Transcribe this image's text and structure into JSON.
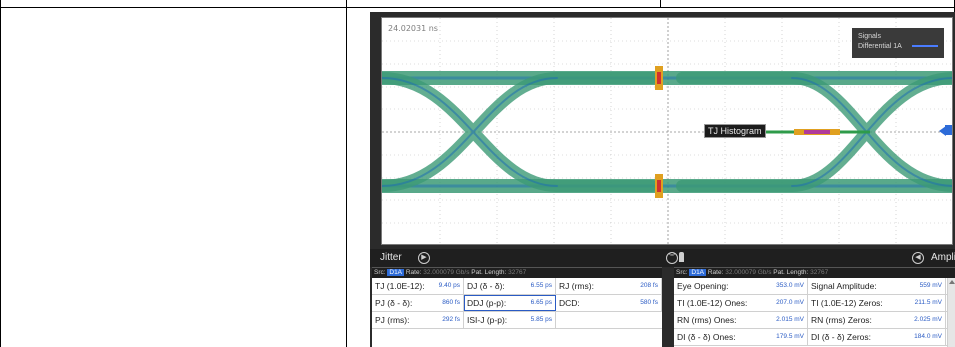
{
  "plot": {
    "time_label": "24.02031 ns",
    "legend": {
      "title": "Signals",
      "entry": "Differential 1A"
    },
    "tj_label": "TJ Histogram"
  },
  "tabbar": {
    "left_tab": "Jitter",
    "right_tab": "Amplitude"
  },
  "jitter_panel": {
    "src_label": "Src:",
    "src_badge": "D1A",
    "rate_label": "Rate:",
    "rate_value": "32.000079 Gb/s",
    "pat_label": "Pat. Length:",
    "pat_value": "32767",
    "rows": [
      [
        {
          "label": "TJ (1.0E-12):",
          "value": "9.40 ps"
        },
        {
          "label": "DJ (δ - δ):",
          "value": "6.55 ps"
        },
        {
          "label": "RJ (rms):",
          "value": "208 fs"
        }
      ],
      [
        {
          "label": "PJ (δ - δ):",
          "value": "860 fs"
        },
        {
          "label": "DDJ (p-p):",
          "value": "6.65 ps"
        },
        {
          "label": "DCD:",
          "value": "580 fs"
        }
      ],
      [
        {
          "label": "PJ (rms):",
          "value": "292 fs"
        },
        {
          "label": "ISI-J (p-p):",
          "value": "5.85 ps"
        }
      ]
    ]
  },
  "amplitude_panel": {
    "src_label": "Src:",
    "src_badge": "D1A",
    "rate_label": "Rate:",
    "rate_value": "32.000079 Gb/s",
    "pat_label": "Pat. Length:",
    "pat_value": "32767",
    "rows": [
      [
        {
          "label": "Eye Opening:",
          "value": "353.0 mV"
        },
        {
          "label": "Signal Amplitude:",
          "value": "559 mV"
        }
      ],
      [
        {
          "label": "TI (1.0E-12) Ones:",
          "value": "207.0 mV"
        },
        {
          "label": "TI (1.0E-12) Zeros:",
          "value": "211.5 mV"
        }
      ],
      [
        {
          "label": "RN (rms) Ones:",
          "value": "2.015 mV"
        },
        {
          "label": "RN (rms) Zeros:",
          "value": "2.025 mV"
        }
      ],
      [
        {
          "label": "DI (δ - δ) Ones:",
          "value": "179.5 mV"
        },
        {
          "label": "DI (δ - δ) Zeros:",
          "value": "184.0 mV"
        }
      ]
    ]
  },
  "colors": {
    "eye_trace": "#2e8b57",
    "marker": "#2d6bd8",
    "value_text": "#2a5bc4"
  }
}
